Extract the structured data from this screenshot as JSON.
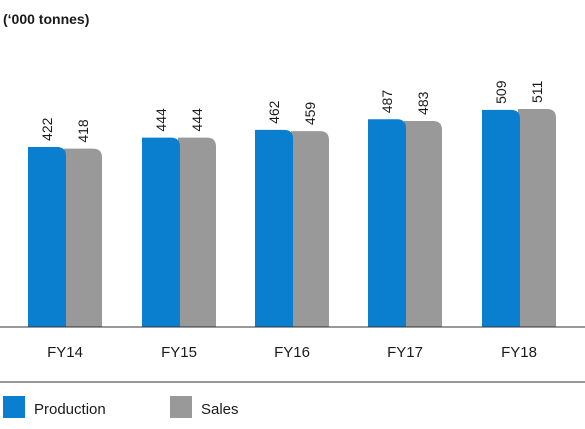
{
  "chart_data": {
    "type": "bar",
    "title": "",
    "unit_label": "(‘000 tonnes)",
    "xlabel": "",
    "ylabel": "",
    "categories": [
      "FY14",
      "FY15",
      "FY16",
      "FY17",
      "FY18"
    ],
    "series": [
      {
        "name": "Production",
        "color": "#0a7fcf",
        "values": [
          422,
          444,
          462,
          487,
          509
        ]
      },
      {
        "name": "Sales",
        "color": "#999999",
        "values": [
          418,
          444,
          459,
          483,
          511
        ]
      }
    ],
    "ylim": [
      0,
      600
    ],
    "grid": false,
    "legend": "bottom-left",
    "data_labels": true
  }
}
